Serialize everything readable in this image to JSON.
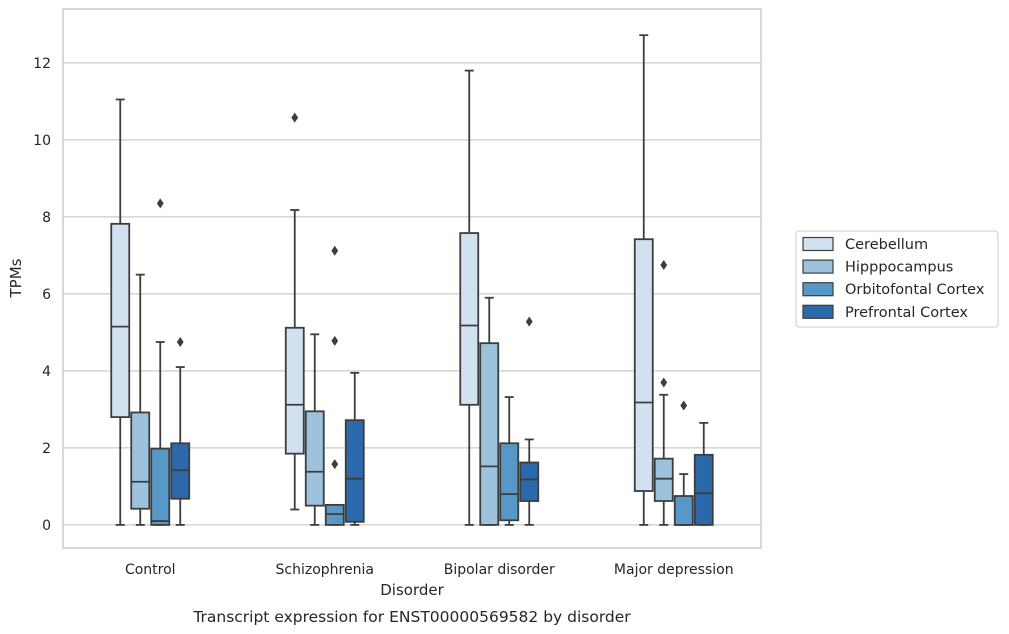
{
  "chart_data": {
    "type": "box",
    "title": "",
    "caption": "Transcript expression for ENST00000569582 by disorder",
    "xlabel": "Disorder",
    "ylabel": "TPMs",
    "ylim": [
      -0.6,
      13.4
    ],
    "yticks": [
      0,
      2,
      4,
      6,
      8,
      10,
      12
    ],
    "grid": "horizontal",
    "legend_position": "right",
    "categories": [
      "Control",
      "Schizophrenia",
      "Bipolar disorder",
      "Major depression"
    ],
    "series": [
      {
        "name": "Cerebellum",
        "color": "#d2e1f0",
        "boxes": [
          {
            "whislo": 0,
            "q1": 2.8,
            "med": 5.15,
            "q3": 7.82,
            "whishi": 11.05,
            "fliers": []
          },
          {
            "whislo": 0.4,
            "q1": 1.85,
            "med": 3.12,
            "q3": 5.12,
            "whishi": 8.18,
            "fliers": [
              10.58
            ]
          },
          {
            "whislo": 0,
            "q1": 3.12,
            "med": 5.18,
            "q3": 7.58,
            "whishi": 11.8,
            "fliers": []
          },
          {
            "whislo": 0,
            "q1": 0.88,
            "med": 3.18,
            "q3": 7.42,
            "whishi": 12.72,
            "fliers": []
          }
        ]
      },
      {
        "name": "Hipppocampus",
        "color": "#9cc3db",
        "boxes": [
          {
            "whislo": 0,
            "q1": 0.42,
            "med": 1.12,
            "q3": 2.92,
            "whishi": 6.5,
            "fliers": []
          },
          {
            "whislo": 0,
            "q1": 0.5,
            "med": 1.38,
            "q3": 2.95,
            "whishi": 4.95,
            "fliers": []
          },
          {
            "whislo": 0,
            "q1": 0,
            "med": 1.52,
            "q3": 4.72,
            "whishi": 5.9,
            "fliers": []
          },
          {
            "whislo": 0,
            "q1": 0.62,
            "med": 1.2,
            "q3": 1.72,
            "whishi": 3.38,
            "fliers": [
              3.7,
              6.75
            ]
          }
        ]
      },
      {
        "name": "Orbitofontal Cortex",
        "color": "#5898c6",
        "boxes": [
          {
            "whislo": 0,
            "q1": 0,
            "med": 0.1,
            "q3": 1.98,
            "whishi": 4.75,
            "fliers": [
              8.35
            ]
          },
          {
            "whislo": 0,
            "q1": 0,
            "med": 0.28,
            "q3": 0.52,
            "whishi": 0.52,
            "fliers": [
              1.58,
              4.78,
              7.12
            ]
          },
          {
            "whislo": 0,
            "q1": 0.12,
            "med": 0.8,
            "q3": 2.12,
            "whishi": 3.32,
            "fliers": []
          },
          {
            "whislo": 0,
            "q1": 0,
            "med": 0,
            "q3": 0.75,
            "whishi": 1.32,
            "fliers": [
              3.1
            ]
          }
        ]
      },
      {
        "name": "Prefrontal Cortex",
        "color": "#2c69aa",
        "boxes": [
          {
            "whislo": 0,
            "q1": 0.68,
            "med": 1.42,
            "q3": 2.12,
            "whishi": 4.1,
            "fliers": [
              4.75
            ]
          },
          {
            "whislo": 0,
            "q1": 0.08,
            "med": 1.2,
            "q3": 2.72,
            "whishi": 3.95,
            "fliers": []
          },
          {
            "whislo": 0,
            "q1": 0.62,
            "med": 1.18,
            "q3": 1.62,
            "whishi": 2.22,
            "fliers": [
              5.28
            ]
          },
          {
            "whislo": 0,
            "q1": 0,
            "med": 0.82,
            "q3": 1.82,
            "whishi": 2.65,
            "fliers": []
          }
        ]
      }
    ]
  }
}
